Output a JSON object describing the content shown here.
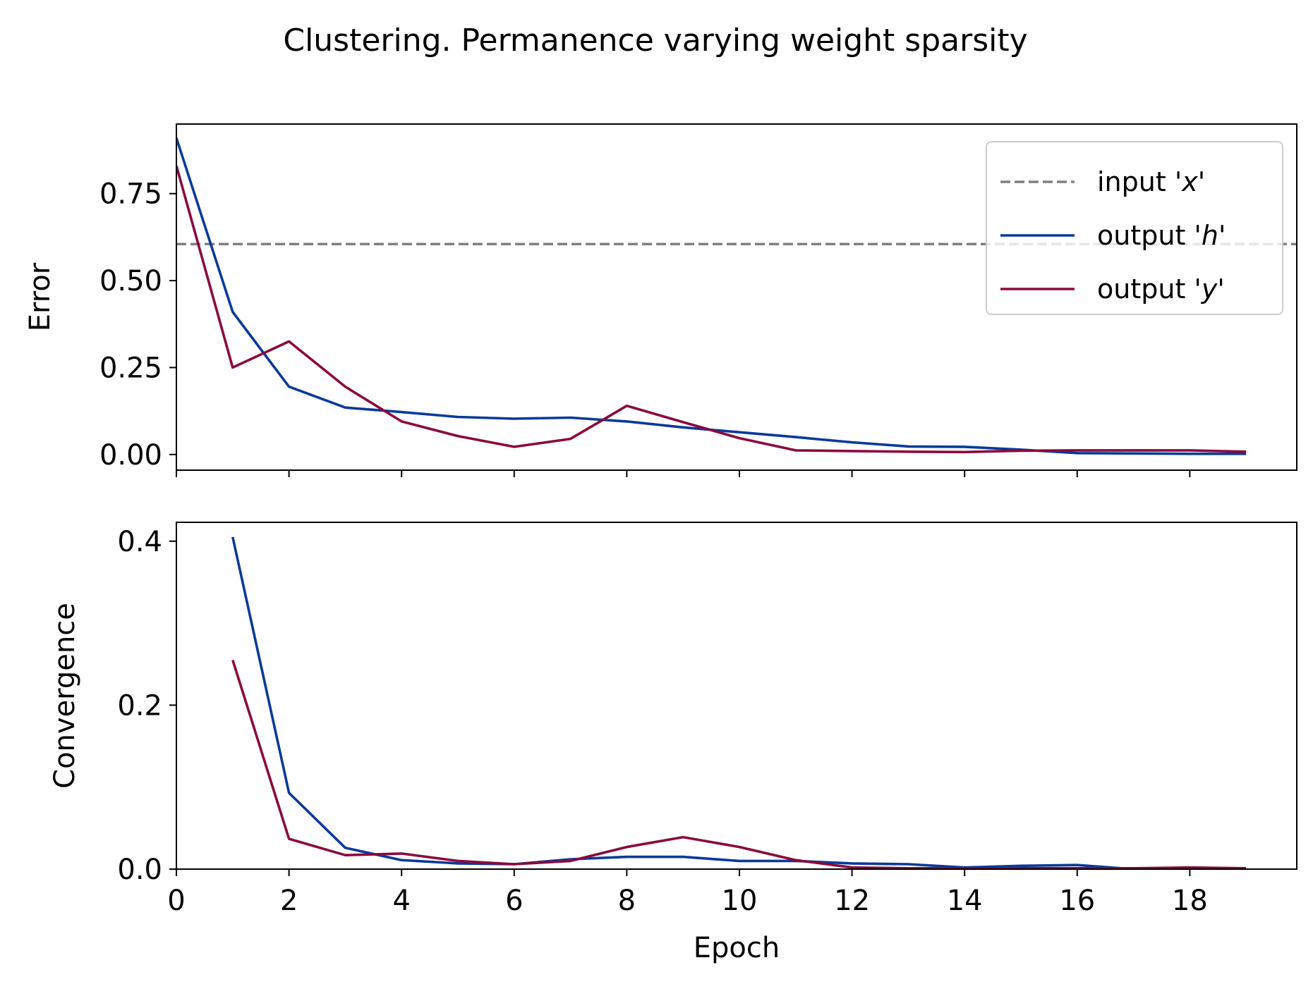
{
  "page": {
    "title": "Clustering. Permanence varying weight sparsity"
  },
  "colors": {
    "input": "#808080",
    "h": "#0a3a99",
    "y": "#8b0a3c",
    "axis": "#000000",
    "background": "#ffffff"
  },
  "chart_data": [
    {
      "type": "line",
      "ylabel": "Error",
      "xlabel": "",
      "xlim": [
        0,
        19.9
      ],
      "ylim": [
        -0.045,
        0.95
      ],
      "yticks": [
        0.0,
        0.25,
        0.5,
        0.75
      ],
      "ytick_labels": [
        "0.00",
        "0.25",
        "0.50",
        "0.75"
      ],
      "xticks": [
        0,
        2,
        4,
        6,
        8,
        10,
        12,
        14,
        16,
        18
      ],
      "show_xtick_labels": false,
      "grid": false,
      "legend": {
        "placement": "top-right",
        "entries": [
          {
            "prefix": "input '",
            "var": "x",
            "suffix": "'",
            "style": "dashed",
            "color_key": "input"
          },
          {
            "prefix": "output '",
            "var": "h",
            "suffix": "'",
            "style": "solid",
            "color_key": "h"
          },
          {
            "prefix": "output '",
            "var": "y",
            "suffix": "'",
            "style": "solid",
            "color_key": "y"
          }
        ]
      },
      "hline": {
        "value": 0.605,
        "style": "dashed",
        "color_key": "input"
      },
      "series": [
        {
          "color_key": "h",
          "x": [
            0,
            1,
            2,
            3,
            4,
            5,
            6,
            7,
            8,
            9,
            10,
            11,
            12,
            13,
            14,
            15,
            16,
            17,
            18,
            19
          ],
          "y": [
            0.91,
            0.41,
            0.195,
            0.135,
            0.122,
            0.108,
            0.103,
            0.106,
            0.095,
            0.078,
            0.064,
            0.05,
            0.035,
            0.023,
            0.022,
            0.014,
            0.004,
            0.003,
            0.002,
            0.002
          ]
        },
        {
          "color_key": "y",
          "x": [
            0,
            1,
            2,
            3,
            4,
            5,
            6,
            7,
            8,
            9,
            10,
            11,
            12,
            13,
            14,
            15,
            16,
            17,
            18,
            19
          ],
          "y": [
            0.83,
            0.25,
            0.325,
            0.195,
            0.095,
            0.053,
            0.022,
            0.045,
            0.14,
            0.093,
            0.047,
            0.012,
            0.01,
            0.008,
            0.007,
            0.011,
            0.012,
            0.012,
            0.012,
            0.008
          ]
        }
      ]
    },
    {
      "type": "line",
      "ylabel": "Convergence",
      "xlabel": "Epoch",
      "xlim": [
        0,
        19.9
      ],
      "ylim": [
        0.0,
        0.423
      ],
      "yticks": [
        0.0,
        0.2,
        0.4
      ],
      "ytick_labels": [
        "0.0",
        "0.2",
        "0.4"
      ],
      "xticks": [
        0,
        2,
        4,
        6,
        8,
        10,
        12,
        14,
        16,
        18
      ],
      "xtick_labels": [
        "0",
        "2",
        "4",
        "6",
        "8",
        "10",
        "12",
        "14",
        "16",
        "18"
      ],
      "show_xtick_labels": true,
      "grid": false,
      "series": [
        {
          "color_key": "h",
          "x": [
            1,
            2,
            3,
            4,
            5,
            6,
            7,
            8,
            9,
            10,
            11,
            12,
            13,
            14,
            15,
            16,
            17,
            18,
            19
          ],
          "y": [
            0.405,
            0.093,
            0.026,
            0.011,
            0.007,
            0.006,
            0.012,
            0.015,
            0.015,
            0.01,
            0.01,
            0.007,
            0.006,
            0.002,
            0.004,
            0.005,
            0.0,
            0.001,
            0.0
          ]
        },
        {
          "color_key": "y",
          "x": [
            1,
            2,
            3,
            4,
            5,
            6,
            7,
            8,
            9,
            10,
            11,
            12,
            13,
            14,
            15,
            16,
            17,
            18,
            19
          ],
          "y": [
            0.255,
            0.037,
            0.017,
            0.019,
            0.01,
            0.006,
            0.01,
            0.027,
            0.039,
            0.027,
            0.011,
            0.002,
            0.001,
            0.001,
            0.001,
            0.001,
            0.001,
            0.002,
            0.001
          ]
        }
      ]
    }
  ]
}
